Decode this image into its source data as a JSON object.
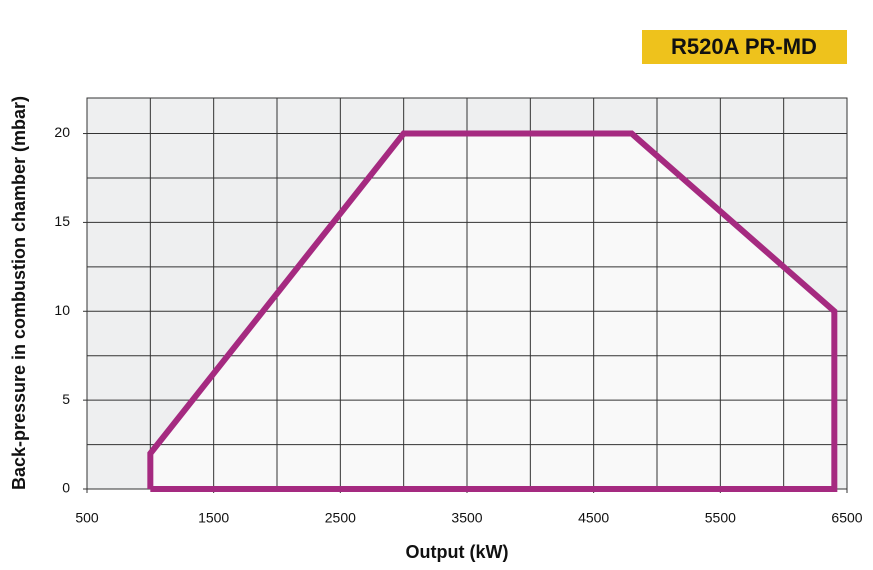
{
  "chart_data": {
    "type": "area",
    "title": "R520A PR-MD",
    "xlabel": "Output (kW)",
    "ylabel": "Back-pressure in combustion chamber (mbar)",
    "x": [
      1000,
      1000,
      3000,
      4800,
      6400,
      6400,
      1000
    ],
    "values": [
      0,
      2,
      20,
      20,
      10,
      0,
      0
    ],
    "color": "#a52a80",
    "fill": "#f9f9f9",
    "xlim": [
      500,
      6500
    ],
    "ylim": [
      0,
      22
    ],
    "xticks": [
      500,
      1500,
      2500,
      3500,
      4500,
      5500,
      6500
    ],
    "yticks": [
      0,
      5,
      10,
      15,
      20
    ],
    "x_gridlines": [
      1000,
      1500,
      2000,
      2500,
      3000,
      3500,
      4000,
      4500,
      5000,
      5500,
      6000
    ],
    "y_gridlines": [
      2.5,
      5,
      7.5,
      10,
      12.5,
      15,
      17.5,
      20
    ],
    "grid": true
  }
}
